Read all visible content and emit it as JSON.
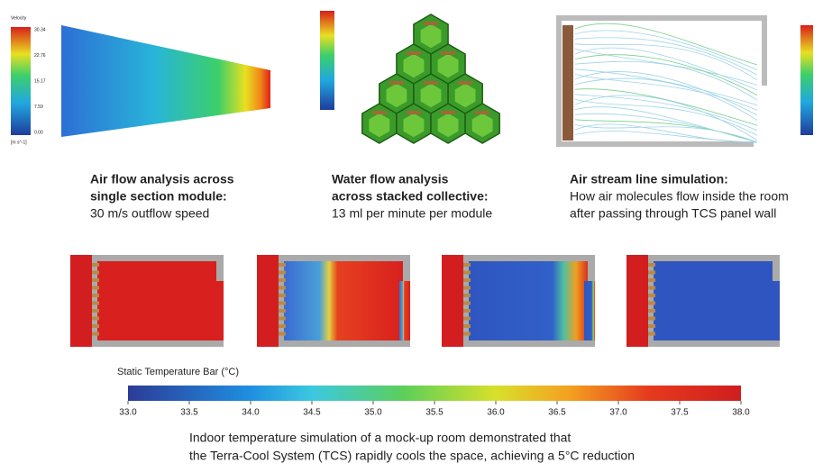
{
  "velocity_legend": {
    "title": "Velocity",
    "ticks": [
      "30.34",
      "22.76",
      "15.17",
      "7.59",
      "0.00"
    ],
    "unit": "[m s^-1]"
  },
  "captions": [
    {
      "bold": [
        "Air flow analysis across",
        "single section module:"
      ],
      "text": [
        "30 m/s outflow speed"
      ]
    },
    {
      "bold": [
        "Water flow analysis",
        "across stacked collective:"
      ],
      "text": [
        "13 ml per minute per module"
      ]
    },
    {
      "bold": [
        "Air stream line simulation:"
      ],
      "text": [
        "How air molecules flow inside the room",
        "after passing through TCS panel wall"
      ]
    }
  ],
  "temperature_bar": {
    "title": "Static Temperature Bar (°C)",
    "range": [
      33,
      38
    ],
    "ticks": [
      {
        "value": 33,
        "label": "33.0"
      },
      33.5,
      {
        "value": 34,
        "label": "34.0"
      },
      34.5,
      {
        "value": 35,
        "label": "35.0"
      },
      35.5,
      {
        "value": 36,
        "label": "36.0"
      },
      36.5,
      {
        "value": 37,
        "label": "37.0"
      },
      37.5,
      {
        "value": 38,
        "label": "38.0"
      }
    ]
  },
  "footer": [
    "Indoor temperature simulation of a mock-up room demonstrated that",
    "the Terra-Cool System (TCS) rapidly cools the space, achieving a 5°C  reduction"
  ]
}
